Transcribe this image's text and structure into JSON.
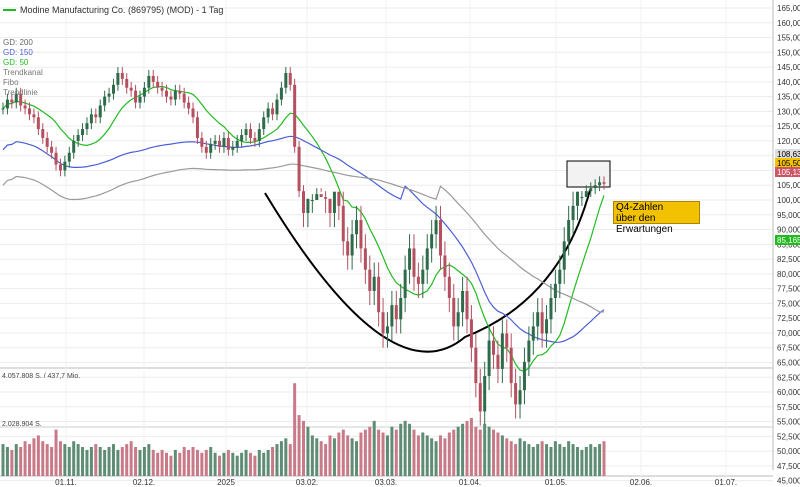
{
  "title": "Modine Manufacturing Co. (869795) (MOD) - 1 Tag",
  "indicators": [
    {
      "label": "GD: 200",
      "color": "#9a9a9a"
    },
    {
      "label": "GD: 150",
      "color": "#4a5fd6"
    },
    {
      "label": "GD: 50",
      "color": "#22bb22"
    },
    {
      "label": "Trendkanal",
      "color": "#777777"
    },
    {
      "label": "Fibo",
      "color": "#777777"
    },
    {
      "label": "Trendlinie",
      "color": "#777777"
    }
  ],
  "volume_labels": {
    "top": "4.057.808 S. / 437,7 Mio.",
    "mid": "2.028.904 S."
  },
  "annotation": {
    "line1": "Q4-Zahlen",
    "line2": "über den Erwartungen"
  },
  "price_tags": [
    {
      "value": "108,63",
      "bg": "#dddddd",
      "fg": "#000000"
    },
    {
      "value": "105,50",
      "bg": "#f2c200",
      "fg": "#000000"
    },
    {
      "value": "105,13",
      "bg": "#cc5566",
      "fg": "#ffffff"
    },
    {
      "value": "85,165",
      "bg": "#22bb22",
      "fg": "#ffffff"
    }
  ],
  "colors": {
    "up": "#2e6b4a",
    "down": "#b55060",
    "vol_up": "#5e8c74",
    "vol_down": "#c97a88"
  },
  "chart_data": {
    "type": "candlestick",
    "y_ticks": [
      "165,000",
      "160,000",
      "155,000",
      "150,000",
      "145,000",
      "140,000",
      "135,000",
      "130,000",
      "125,000",
      "120,000",
      "115,000",
      "110,000",
      "105,000",
      "100,000",
      "95,000",
      "90,000",
      "85,000",
      "82,500",
      "80,000",
      "77,500",
      "75,000",
      "72,500",
      "70,000",
      "67,500",
      "65,000",
      "62,500",
      "60,000",
      "57,500",
      "55,000",
      "52,500",
      "50,000",
      "47,500",
      "45,000"
    ],
    "x_ticks": [
      "01.11.",
      "02.12.",
      "2025",
      "03.02.",
      "03.03.",
      "01.04.",
      "01.05.",
      "02.06.",
      "01.07."
    ],
    "close": [
      131,
      134,
      133,
      136,
      132,
      131,
      129,
      128,
      124,
      121,
      118,
      116,
      112,
      110,
      113,
      116,
      120,
      122,
      124,
      126,
      129,
      128,
      132,
      135,
      136,
      139,
      143,
      141,
      138,
      137,
      133,
      135,
      138,
      142,
      140,
      138,
      137,
      135,
      134,
      137,
      136,
      133,
      131,
      128,
      121,
      118,
      116,
      119,
      120,
      118,
      121,
      117,
      118,
      120,
      122,
      124,
      121,
      120,
      124,
      128,
      131,
      129,
      134,
      138,
      143,
      139,
      118,
      103,
      96,
      98,
      100,
      102,
      101,
      98,
      96,
      99,
      97,
      92,
      90,
      93,
      95,
      91,
      88,
      85,
      87,
      82,
      79,
      80,
      83,
      81,
      84,
      88,
      91,
      87,
      86,
      88,
      91,
      93,
      95,
      90,
      87,
      84,
      80,
      82,
      85,
      81,
      77,
      72,
      68,
      73,
      78,
      76,
      74,
      79,
      77,
      72,
      69,
      71,
      75,
      78,
      80,
      82,
      79,
      81,
      84,
      86,
      88,
      92,
      95,
      97,
      99,
      101,
      103,
      104,
      105,
      106,
      105.5
    ],
    "volume": [
      0.55,
      0.5,
      0.45,
      0.55,
      0.5,
      0.6,
      0.55,
      0.65,
      0.7,
      0.6,
      0.55,
      0.5,
      0.8,
      0.6,
      0.55,
      0.5,
      0.6,
      0.55,
      0.5,
      0.45,
      0.5,
      0.55,
      0.5,
      0.45,
      0.5,
      0.55,
      0.45,
      0.5,
      0.55,
      0.6,
      0.5,
      0.45,
      0.5,
      0.55,
      0.45,
      0.4,
      0.45,
      0.4,
      0.35,
      0.45,
      0.4,
      0.5,
      0.45,
      0.5,
      0.45,
      0.4,
      0.45,
      0.5,
      0.4,
      0.35,
      0.4,
      0.45,
      0.4,
      0.35,
      0.4,
      0.45,
      0.4,
      0.35,
      0.45,
      0.4,
      0.45,
      0.5,
      0.55,
      0.6,
      0.65,
      0.55,
      1.6,
      1.05,
      0.95,
      0.85,
      0.7,
      0.65,
      0.6,
      0.55,
      0.7,
      0.65,
      0.75,
      0.8,
      0.7,
      0.65,
      0.6,
      0.75,
      0.8,
      0.85,
      0.95,
      0.8,
      0.75,
      0.7,
      0.85,
      0.8,
      0.9,
      0.95,
      0.9,
      0.8,
      0.7,
      0.75,
      0.7,
      0.65,
      0.6,
      0.7,
      0.65,
      0.75,
      0.8,
      0.85,
      0.9,
      0.95,
      1.0,
      0.85,
      0.8,
      0.9,
      0.85,
      0.8,
      0.75,
      0.7,
      0.65,
      0.6,
      0.55,
      0.65,
      0.6,
      0.55,
      0.5,
      0.55,
      0.6,
      0.55,
      0.5,
      0.6,
      0.55,
      0.5,
      0.6,
      0.55,
      0.5,
      0.45,
      0.5,
      0.55,
      0.5,
      0.55,
      0.6
    ]
  }
}
